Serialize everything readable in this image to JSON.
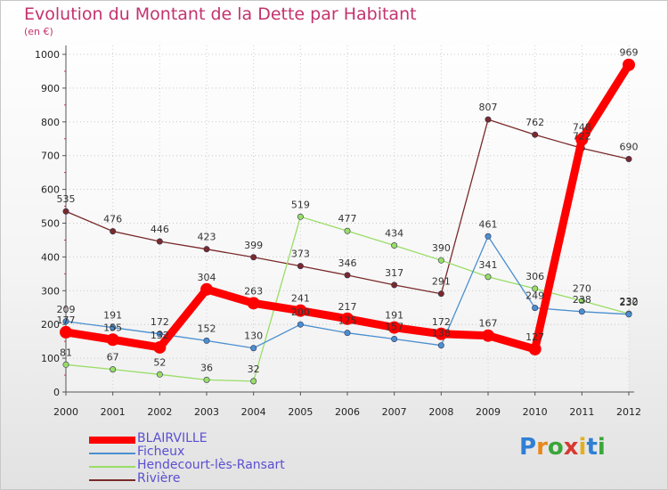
{
  "chart_data": {
    "type": "line",
    "title": "Evolution du Montant de la Dette par Habitant",
    "subtitle": "(en €)",
    "xlabel": "",
    "ylabel": "",
    "x": [
      "2000",
      "2001",
      "2002",
      "2003",
      "2004",
      "2005",
      "2006",
      "2007",
      "2008",
      "2009",
      "2010",
      "2011",
      "2012"
    ],
    "ylim": [
      0,
      1000
    ],
    "yticks": [
      "0",
      "100",
      "200",
      "300",
      "400",
      "500",
      "600",
      "700",
      "800",
      "900",
      "1000"
    ],
    "grid": true,
    "legend": "bottom-left",
    "series": [
      {
        "name": "BLAIRVILLE",
        "color": "#ff0000",
        "values": [
          177,
          155,
          132,
          304,
          263,
          241,
          217,
          191,
          172,
          167,
          127,
          748,
          969
        ]
      },
      {
        "name": "Ficheux",
        "color": "#4a8fcf",
        "values": [
          209,
          191,
          172,
          152,
          130,
          200,
          175,
          157,
          138,
          461,
          249,
          238,
          230
        ]
      },
      {
        "name": "Hendecourt-lès-Ransart",
        "color": "#99dd66",
        "values": [
          81,
          67,
          52,
          36,
          32,
          519,
          477,
          434,
          390,
          341,
          306,
          270,
          232
        ]
      },
      {
        "name": "Rivière",
        "color": "#7a2a2a",
        "values": [
          535,
          476,
          446,
          423,
          399,
          373,
          346,
          317,
          291,
          807,
          762,
          722,
          690
        ]
      }
    ]
  },
  "logo": {
    "text": "Proxiti"
  }
}
